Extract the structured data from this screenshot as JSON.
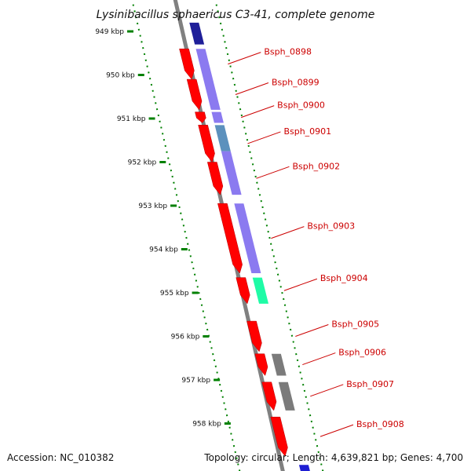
{
  "header": {
    "title": "Lysinibacillus sphaericus C3-41, complete genome"
  },
  "footer": {
    "accession": "Accession: NC_010382",
    "topology": "Topology: circular; Length: 4,639,821 bp; Genes: 4,700"
  },
  "scale": {
    "ticks": [
      {
        "kbp": 949,
        "label": "949 kbp"
      },
      {
        "kbp": 950,
        "label": "950 kbp"
      },
      {
        "kbp": 951,
        "label": "951 kbp"
      },
      {
        "kbp": 952,
        "label": "952 kbp"
      },
      {
        "kbp": 953,
        "label": "953 kbp"
      },
      {
        "kbp": 954,
        "label": "954 kbp"
      },
      {
        "kbp": 955,
        "label": "955 kbp"
      },
      {
        "kbp": 956,
        "label": "956 kbp"
      },
      {
        "kbp": 957,
        "label": "957 kbp"
      },
      {
        "kbp": 958,
        "label": "958 kbp"
      }
    ]
  },
  "genes": [
    {
      "label": "Bsph_0898",
      "start": 949.4,
      "end": 950.1
    },
    {
      "label": "Bsph_0899",
      "start": 950.1,
      "end": 950.8
    },
    {
      "label": "Bsph_0900",
      "start": 950.85,
      "end": 951.1
    },
    {
      "label": "Bsph_0901",
      "start": 951.15,
      "end": 952.0
    },
    {
      "label": "Bsph_0902",
      "start": 952.0,
      "end": 952.75
    },
    {
      "label": "Bsph_0903",
      "start": 952.95,
      "end": 954.55
    },
    {
      "label": "Bsph_0904",
      "start": 954.65,
      "end": 955.25
    },
    {
      "label": "Bsph_0905",
      "start": 955.65,
      "end": 956.35
    },
    {
      "label": "Bsph_0906",
      "start": 956.4,
      "end": 956.9
    },
    {
      "label": "Bsph_0907",
      "start": 957.05,
      "end": 957.7
    },
    {
      "label": "Bsph_0908",
      "start": 957.85,
      "end": 958.75
    }
  ],
  "cds_features": [
    {
      "start": 948.8,
      "end": 949.3,
      "color": "#00008b"
    },
    {
      "start": 949.4,
      "end": 950.8,
      "color": "#7b68ee"
    },
    {
      "start": 950.85,
      "end": 951.1,
      "color": "#7b68ee"
    },
    {
      "start": 951.15,
      "end": 951.75,
      "color": "#4682b4"
    },
    {
      "start": 951.75,
      "end": 952.75,
      "color": "#7b68ee"
    },
    {
      "start": 952.95,
      "end": 954.55,
      "color": "#7b68ee"
    },
    {
      "start": 954.65,
      "end": 955.25,
      "color": "#00fa9a"
    },
    {
      "start": 956.4,
      "end": 956.9,
      "color": "#696969"
    },
    {
      "start": 957.05,
      "end": 957.7,
      "color": "#696969"
    },
    {
      "start": 958.95,
      "end": 959.2,
      "color": "#0000cd"
    }
  ],
  "colors": {
    "gene": "#ff0000",
    "backbone": "#808080",
    "scale": "#008000",
    "label": "#cc0000"
  }
}
